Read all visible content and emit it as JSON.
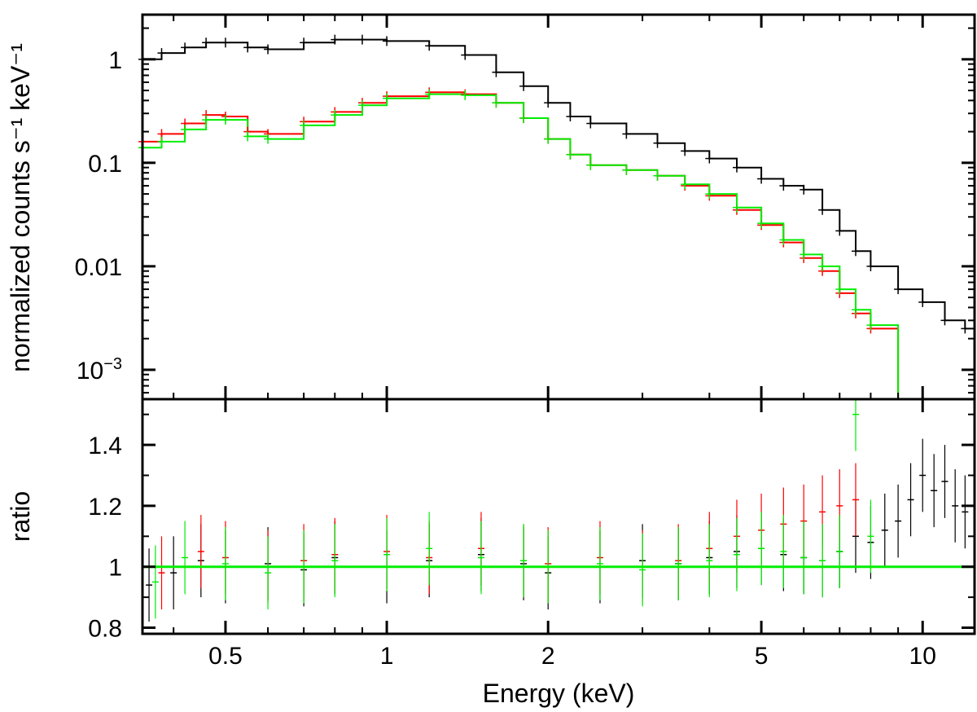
{
  "chart_data": {
    "type": "scatter",
    "xlabel": "Energy (keV)",
    "x_scale": "log",
    "xlim": [
      0.35,
      12.5
    ],
    "x_ticks": [
      {
        "value": 0.5,
        "label": "0.5"
      },
      {
        "value": 1,
        "label": "1"
      },
      {
        "value": 2,
        "label": "2"
      },
      {
        "value": 5,
        "label": "5"
      },
      {
        "value": 10,
        "label": "10"
      }
    ],
    "panels": [
      {
        "name": "spectrum",
        "ylabel": "normalized counts s⁻¹ keV⁻¹",
        "y_scale": "log",
        "ylim": [
          0.00052,
          2.7
        ],
        "y_ticks": [
          {
            "value": 1,
            "label": "1"
          },
          {
            "value": 0.1,
            "label": "0.1"
          },
          {
            "value": 0.01,
            "label": "0.01"
          },
          {
            "value": 0.001,
            "base": "10",
            "exponent": "−3"
          }
        ],
        "series": [
          {
            "name": "black data",
            "color": "#000000",
            "x": [
              0.35,
              0.38,
              0.42,
              0.46,
              0.5,
              0.55,
              0.6,
              0.7,
              0.8,
              0.9,
              1.0,
              1.2,
              1.4,
              1.6,
              1.8,
              2.0,
              2.2,
              2.4,
              2.8,
              3.2,
              3.6,
              4.0,
              4.5,
              5.0,
              5.5,
              6.0,
              6.5,
              7.0,
              7.5,
              8.0,
              9.0,
              10.0,
              11.0,
              12.0
            ],
            "y": [
              1.0,
              1.15,
              1.3,
              1.45,
              1.45,
              1.3,
              1.25,
              1.45,
              1.55,
              1.55,
              1.5,
              1.35,
              1.1,
              0.75,
              0.55,
              0.38,
              0.28,
              0.24,
              0.19,
              0.155,
              0.13,
              0.11,
              0.09,
              0.07,
              0.06,
              0.055,
              0.035,
              0.022,
              0.014,
              0.01,
              0.006,
              0.0045,
              0.003,
              0.0025
            ]
          },
          {
            "name": "red data",
            "color": "#ff0000",
            "x": [
              0.35,
              0.38,
              0.42,
              0.46,
              0.5,
              0.55,
              0.6,
              0.7,
              0.8,
              0.9,
              1.0,
              1.2,
              1.4,
              1.6,
              1.8,
              2.0,
              2.2,
              2.4,
              2.8,
              3.2,
              3.6,
              4.0,
              4.5,
              5.0,
              5.5,
              6.0,
              6.5,
              7.0,
              7.5,
              8.0
            ],
            "y": [
              0.16,
              0.19,
              0.24,
              0.29,
              0.28,
              0.2,
              0.19,
              0.25,
              0.31,
              0.38,
              0.44,
              0.48,
              0.46,
              0.38,
              0.27,
              0.17,
              0.12,
              0.095,
              0.085,
              0.075,
              0.06,
              0.048,
              0.035,
              0.025,
              0.017,
              0.012,
              0.009,
              0.0055,
              0.0035,
              0.0025
            ]
          },
          {
            "name": "green data",
            "color": "#00ee00",
            "x": [
              0.35,
              0.38,
              0.42,
              0.46,
              0.5,
              0.55,
              0.6,
              0.7,
              0.8,
              0.9,
              1.0,
              1.2,
              1.4,
              1.6,
              1.8,
              2.0,
              2.2,
              2.4,
              2.8,
              3.2,
              3.6,
              4.0,
              4.5,
              5.0,
              5.5,
              6.0,
              6.5,
              7.0,
              7.5,
              8.0
            ],
            "y": [
              0.14,
              0.16,
              0.21,
              0.26,
              0.26,
              0.18,
              0.17,
              0.23,
              0.29,
              0.36,
              0.42,
              0.46,
              0.45,
              0.38,
              0.27,
              0.17,
              0.12,
              0.095,
              0.085,
              0.075,
              0.062,
              0.05,
              0.037,
              0.026,
              0.018,
              0.013,
              0.01,
              0.006,
              0.0038,
              0.0027
            ]
          }
        ],
        "models": [
          {
            "name": "black model",
            "color": "#000000",
            "x": [
              0.35,
              0.38,
              0.42,
              0.46,
              0.5,
              0.55,
              0.6,
              0.7,
              0.8,
              0.9,
              1.0,
              1.2,
              1.4,
              1.6,
              1.8,
              2.0,
              2.2,
              2.4,
              2.8,
              3.2,
              3.6,
              4.0,
              4.5,
              5.0,
              5.5,
              6.0,
              6.5,
              7.0,
              7.5,
              8.0,
              9.0,
              10.0,
              11.0,
              12.0,
              12.5
            ],
            "y": [
              1.0,
              1.15,
              1.3,
              1.45,
              1.45,
              1.3,
              1.25,
              1.45,
              1.55,
              1.55,
              1.5,
              1.35,
              1.1,
              0.75,
              0.55,
              0.38,
              0.28,
              0.24,
              0.19,
              0.155,
              0.13,
              0.11,
              0.09,
              0.07,
              0.06,
              0.055,
              0.035,
              0.022,
              0.014,
              0.01,
              0.006,
              0.0045,
              0.003,
              0.0025,
              0.0025
            ]
          },
          {
            "name": "red model",
            "color": "#ff0000",
            "x": [
              0.35,
              0.38,
              0.42,
              0.46,
              0.5,
              0.55,
              0.6,
              0.7,
              0.8,
              0.9,
              1.0,
              1.2,
              1.4,
              1.6,
              1.8,
              2.0,
              2.2,
              2.4,
              2.8,
              3.2,
              3.6,
              4.0,
              4.5,
              5.0,
              5.5,
              6.0,
              6.5,
              7.0,
              7.5,
              8.0,
              9.0,
              12.5
            ],
            "y": [
              0.16,
              0.19,
              0.24,
              0.29,
              0.28,
              0.2,
              0.19,
              0.25,
              0.31,
              0.38,
              0.44,
              0.48,
              0.46,
              0.38,
              0.27,
              0.17,
              0.12,
              0.095,
              0.085,
              0.075,
              0.06,
              0.048,
              0.035,
              0.025,
              0.017,
              0.012,
              0.009,
              0.0055,
              0.0035,
              0.0025,
              0.0005,
              0.0005
            ]
          },
          {
            "name": "green model",
            "color": "#00ee00",
            "x": [
              0.35,
              0.38,
              0.42,
              0.46,
              0.5,
              0.55,
              0.6,
              0.7,
              0.8,
              0.9,
              1.0,
              1.2,
              1.4,
              1.6,
              1.8,
              2.0,
              2.2,
              2.4,
              2.8,
              3.2,
              3.6,
              4.0,
              4.5,
              5.0,
              5.5,
              6.0,
              6.5,
              7.0,
              7.5,
              8.0,
              9.0,
              12.5
            ],
            "y": [
              0.14,
              0.16,
              0.21,
              0.26,
              0.26,
              0.18,
              0.17,
              0.23,
              0.29,
              0.36,
              0.42,
              0.46,
              0.45,
              0.38,
              0.27,
              0.17,
              0.12,
              0.095,
              0.085,
              0.075,
              0.062,
              0.05,
              0.037,
              0.026,
              0.018,
              0.013,
              0.01,
              0.006,
              0.0038,
              0.0027,
              0.0005,
              0.0005
            ]
          }
        ]
      },
      {
        "name": "ratio",
        "ylabel": "ratio",
        "y_scale": "linear",
        "ylim": [
          0.78,
          1.55
        ],
        "y_ticks": [
          {
            "value": 0.8,
            "label": "0.8"
          },
          {
            "value": 1,
            "label": "1"
          },
          {
            "value": 1.2,
            "label": "1.2"
          },
          {
            "value": 1.4,
            "label": "1.4"
          }
        ],
        "reference_line": {
          "value": 1.0,
          "color": "#00ee00"
        },
        "series": [
          {
            "name": "black ratio",
            "color": "#000000",
            "x": [
              0.36,
              0.4,
              0.45,
              0.5,
              0.6,
              0.7,
              0.8,
              1.0,
              1.2,
              1.5,
              1.8,
              2.0,
              2.5,
              3.0,
              3.5,
              4.0,
              4.5,
              5.0,
              5.5,
              6.0,
              6.5,
              7.0,
              7.5,
              8.0,
              8.5,
              9.0,
              9.5,
              10.0,
              10.5,
              11.0,
              11.5,
              12.0
            ],
            "y": [
              0.94,
              0.98,
              1.02,
              1.0,
              1.01,
              0.99,
              1.03,
              1.0,
              1.02,
              1.04,
              1.01,
              0.98,
              1.0,
              1.02,
              1.01,
              1.03,
              1.05,
              1.06,
              1.04,
              1.03,
              1.02,
              1.05,
              1.1,
              1.08,
              1.12,
              1.15,
              1.22,
              1.3,
              1.25,
              1.28,
              1.2,
              1.18
            ]
          },
          {
            "name": "red ratio",
            "color": "#ff0000",
            "x": [
              0.38,
              0.45,
              0.5,
              0.6,
              0.7,
              0.8,
              1.0,
              1.2,
              1.5,
              1.8,
              2.0,
              2.5,
              3.0,
              3.5,
              4.0,
              4.5,
              5.0,
              5.5,
              6.0,
              6.5,
              7.0,
              7.5
            ],
            "y": [
              0.98,
              1.05,
              1.03,
              1.0,
              1.02,
              1.04,
              1.05,
              1.03,
              1.06,
              1.02,
              1.01,
              1.03,
              1.0,
              1.02,
              1.06,
              1.1,
              1.12,
              1.14,
              1.15,
              1.18,
              1.2,
              1.22
            ]
          },
          {
            "name": "green ratio",
            "color": "#00ee00",
            "x": [
              0.37,
              0.42,
              0.5,
              0.6,
              0.7,
              0.8,
              1.0,
              1.2,
              1.5,
              1.8,
              2.0,
              2.5,
              3.0,
              3.5,
              4.0,
              4.5,
              5.0,
              5.5,
              6.0,
              6.5,
              7.0,
              7.5,
              8.0
            ],
            "y": [
              0.95,
              1.03,
              1.01,
              0.98,
              1.0,
              1.02,
              1.04,
              1.06,
              1.03,
              1.02,
              1.0,
              1.01,
              0.99,
              1.01,
              1.02,
              1.04,
              1.06,
              1.05,
              1.03,
              1.02,
              1.05,
              1.5,
              1.1
            ]
          }
        ]
      }
    ]
  }
}
